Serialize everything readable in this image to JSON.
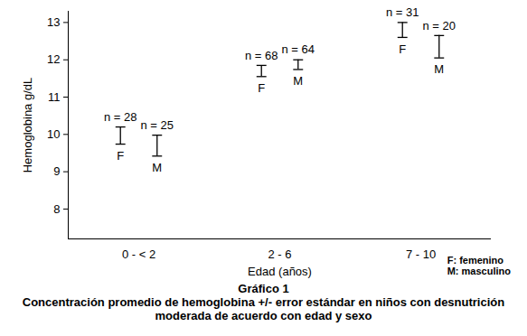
{
  "chart_data": {
    "type": "error_bar",
    "title": "Gráfico 1",
    "subtitle": "Concentración promedio de hemoglobina +/- error estándar en niños con desnutrición moderada de acuerdo con edad y sexo",
    "x_label": "Edad (años)",
    "y_label": "Hemoglobina g/dL",
    "categories": [
      "0 - < 2",
      "2 - 6",
      "7 - 10"
    ],
    "series": [
      {
        "name": "F",
        "color": "#000000",
        "values": [
          9.97,
          11.7,
          12.8
        ],
        "errors": [
          0.23,
          0.15,
          0.2
        ],
        "n_labels": [
          "n = 28",
          "n = 68",
          "n = 31"
        ]
      },
      {
        "name": "M",
        "color": "#000000",
        "values": [
          9.7,
          11.87,
          12.35
        ],
        "errors": [
          0.28,
          0.13,
          0.3
        ],
        "n_labels": [
          "n = 25",
          "n = 64",
          "n = 20"
        ]
      }
    ],
    "annotations": [
      "F: femenino",
      "M: masculino"
    ],
    "ylim": [
      7.2,
      13.3
    ],
    "yticks": [
      8,
      9,
      10,
      11,
      12,
      13
    ],
    "grid": false
  }
}
